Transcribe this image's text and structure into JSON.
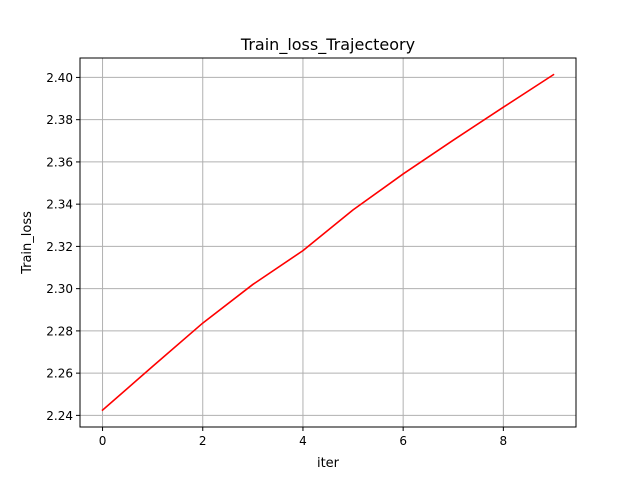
{
  "chart_data": {
    "type": "line",
    "title": "Train_loss_Trajecteory",
    "xlabel": "iter",
    "ylabel": "Train_loss",
    "grid": true,
    "xlim": [
      -0.45,
      9.45
    ],
    "ylim": [
      2.2345,
      2.4092
    ],
    "x_ticks": [
      0,
      2,
      4,
      6,
      8
    ],
    "x_tick_labels": [
      "0",
      "2",
      "4",
      "6",
      "8"
    ],
    "y_ticks": [
      2.24,
      2.26,
      2.28,
      2.3,
      2.32,
      2.34,
      2.36,
      2.38,
      2.4
    ],
    "y_tick_labels": [
      "2.24",
      "2.26",
      "2.28",
      "2.30",
      "2.32",
      "2.34",
      "2.36",
      "2.38",
      "2.40"
    ],
    "series": [
      {
        "color": "#ff0000",
        "x": [
          0,
          1,
          2,
          3,
          4,
          5,
          6,
          7,
          8,
          9
        ],
        "values": [
          2.2425,
          2.2632,
          2.2837,
          2.302,
          2.318,
          2.3373,
          2.3543,
          2.3703,
          2.3859,
          2.4013
        ]
      }
    ]
  }
}
